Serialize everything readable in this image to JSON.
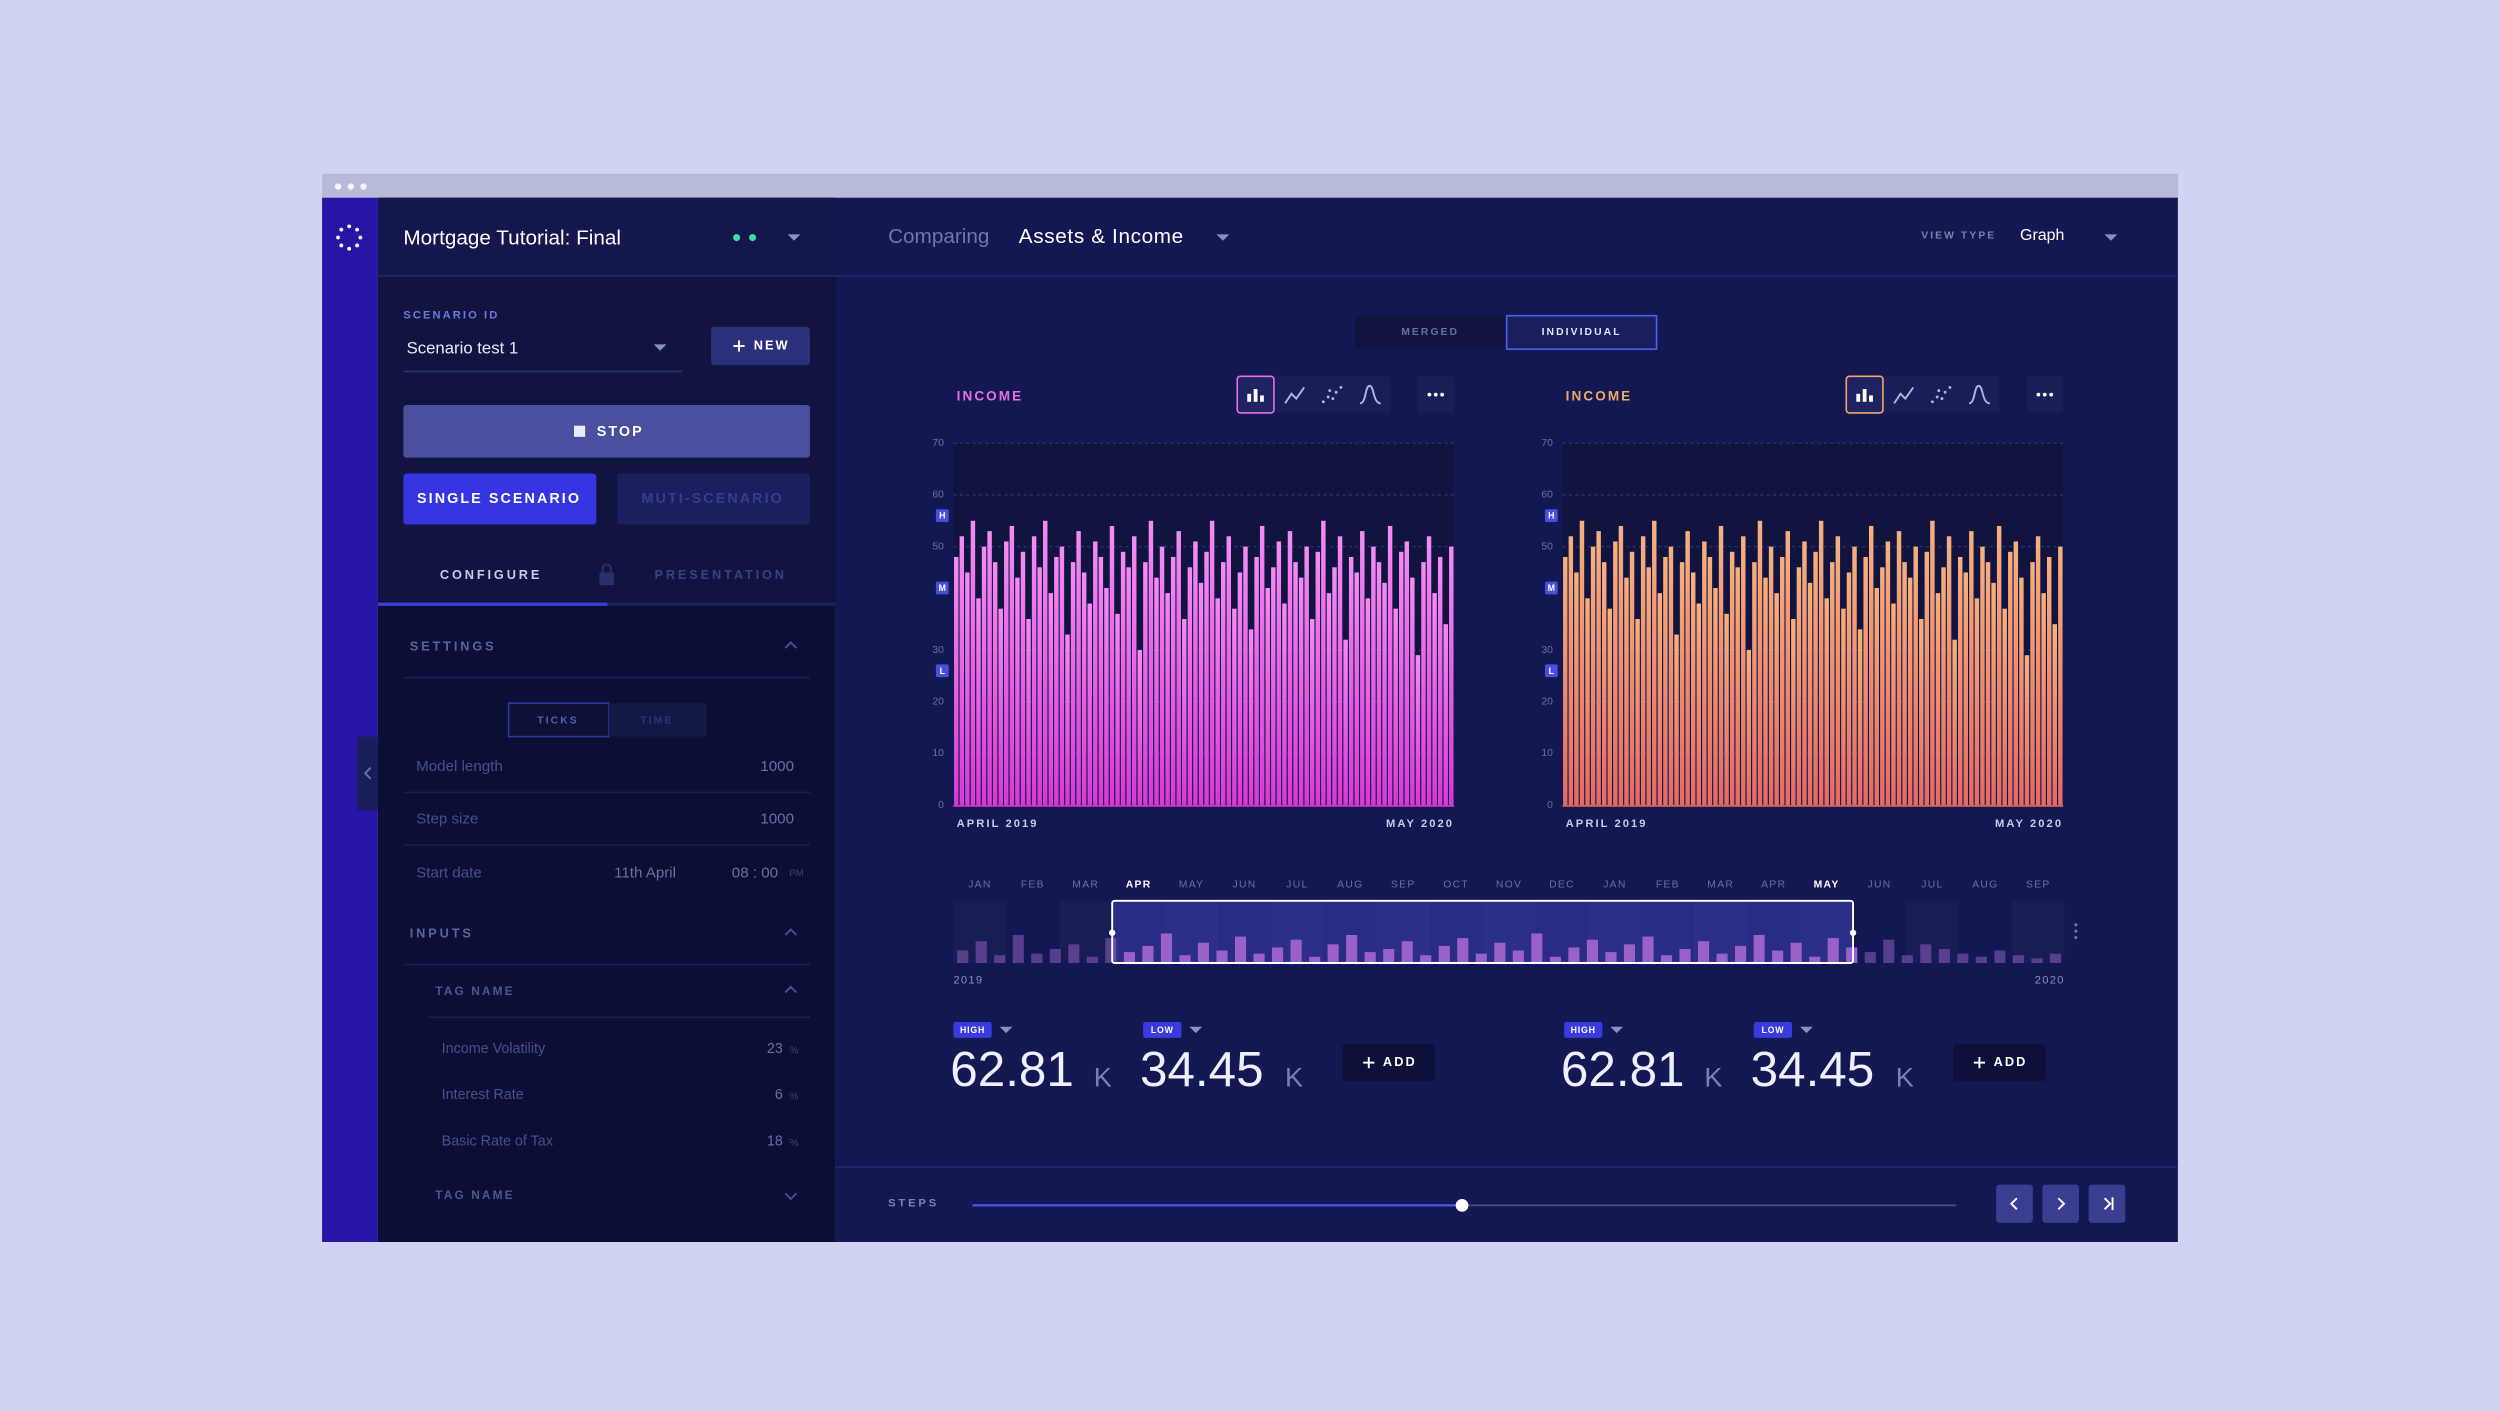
{
  "sidebar": {
    "title": "Mortgage Tutorial: Final",
    "scenario_label": "SCENARIO ID",
    "scenario": "Scenario test 1",
    "new_button": "NEW",
    "stop_button": "STOP",
    "mode_buttons": [
      "SINGLE SCENARIO",
      "MUTI-SCENARIO"
    ],
    "tabs": [
      "CONFIGURE",
      "PRESENTATION"
    ],
    "settings": {
      "title": "SETTINGS",
      "toggle": [
        "TICKS",
        "TIME"
      ],
      "rows": [
        {
          "label": "Model length",
          "value": 1000
        },
        {
          "label": "Step size",
          "value": 1000
        }
      ],
      "start_date": {
        "label": "Start date",
        "date": "11th April",
        "time": "08 : 00",
        "period": "PM"
      }
    },
    "inputs": {
      "title": "INPUTS",
      "tag_names": [
        "TAG NAME",
        "TAG NAME"
      ],
      "rows": [
        {
          "label": "Income Volatility",
          "value": 23,
          "unit": "%"
        },
        {
          "label": "Interest Rate",
          "value": 6,
          "unit": "%"
        },
        {
          "label": "Basic Rate of Tax",
          "value": 18,
          "unit": "%"
        }
      ]
    }
  },
  "topbar": {
    "comparing": "Comparing",
    "subject": "Assets & Income",
    "view_type_label": "VIEW TYPE",
    "view_type": "Graph"
  },
  "view_toggle": {
    "options": [
      "MERGED",
      "INDIVIDUAL"
    ],
    "selected": 1
  },
  "chart_data": [
    {
      "type": "bar",
      "title": "INCOME",
      "title_color": "#e86fe0",
      "color": "#d838d8",
      "color_light": "#f38cf3",
      "ylim": [
        0,
        70
      ],
      "yticks": [
        0,
        10,
        20,
        30,
        50,
        60,
        70
      ],
      "grid": true,
      "markers": [
        {
          "label": "H",
          "value": 56
        },
        {
          "label": "M",
          "value": 42
        },
        {
          "label": "L",
          "value": 26
        }
      ],
      "x_start": "APRIL 2019",
      "x_end": "MAY 2020",
      "values": [
        48,
        52,
        45,
        55,
        40,
        50,
        53,
        47,
        38,
        51,
        54,
        44,
        49,
        36,
        52,
        46,
        55,
        41,
        48,
        50,
        33,
        47,
        53,
        45,
        39,
        51,
        48,
        42,
        54,
        37,
        49,
        46,
        52,
        30,
        47,
        55,
        44,
        50,
        41,
        48,
        53,
        36,
        46,
        51,
        43,
        49,
        55,
        40,
        47,
        52,
        38,
        45,
        50,
        34,
        48,
        54,
        42,
        46,
        51,
        39,
        53,
        47,
        44,
        50,
        36,
        49,
        55,
        41,
        46,
        52,
        32,
        48,
        45,
        53,
        40,
        50,
        47,
        43,
        54,
        38,
        49,
        51,
        44,
        29,
        47,
        52,
        41,
        48,
        35,
        50
      ]
    },
    {
      "type": "bar",
      "title": "INCOME",
      "title_color": "#f0a868",
      "color": "#e46a66",
      "color_light": "#f6b07e",
      "ylim": [
        0,
        70
      ],
      "yticks": [
        0,
        10,
        20,
        30,
        50,
        60,
        70
      ],
      "grid": true,
      "markers": [
        {
          "label": "H",
          "value": 56
        },
        {
          "label": "M",
          "value": 42
        },
        {
          "label": "L",
          "value": 26
        }
      ],
      "x_start": "APRIL 2019",
      "x_end": "MAY 2020",
      "values": [
        48,
        52,
        45,
        55,
        40,
        50,
        53,
        47,
        38,
        51,
        54,
        44,
        49,
        36,
        52,
        46,
        55,
        41,
        48,
        50,
        33,
        47,
        53,
        45,
        39,
        51,
        48,
        42,
        54,
        37,
        49,
        46,
        52,
        30,
        47,
        55,
        44,
        50,
        41,
        48,
        53,
        36,
        46,
        51,
        43,
        49,
        55,
        40,
        47,
        52,
        38,
        45,
        50,
        34,
        48,
        54,
        42,
        46,
        51,
        39,
        53,
        47,
        44,
        50,
        36,
        49,
        55,
        41,
        46,
        52,
        32,
        48,
        45,
        53,
        40,
        50,
        47,
        43,
        54,
        38,
        49,
        51,
        44,
        29,
        47,
        52,
        41,
        48,
        35,
        50
      ]
    }
  ],
  "timeline": {
    "months": [
      "JAN",
      "FEB",
      "MAR",
      "APR",
      "MAY",
      "JUN",
      "JUL",
      "AUG",
      "SEP",
      "OCT",
      "NOV",
      "DEC",
      "JAN",
      "FEB",
      "MAR",
      "APR",
      "MAY",
      "JUN",
      "JUL",
      "AUG",
      "SEP"
    ],
    "selection": [
      3,
      16
    ],
    "start_label": "2019",
    "end_label": "2020",
    "ylim": [
      0,
      40
    ],
    "color": "#9a62c8",
    "values": [
      8,
      14,
      5,
      18,
      6,
      9,
      12,
      4,
      16,
      7,
      11,
      19,
      5,
      13,
      8,
      17,
      6,
      10,
      15,
      4,
      12,
      18,
      7,
      9,
      14,
      5,
      11,
      16,
      6,
      13,
      8,
      19,
      4,
      10,
      15,
      7,
      12,
      17,
      5,
      9,
      14,
      6,
      11,
      18,
      8,
      13,
      4,
      16,
      10,
      7,
      15,
      5,
      12,
      9,
      6,
      4,
      8,
      5,
      3,
      6
    ]
  },
  "stats": [
    {
      "high_label": "HIGH",
      "high": 62.81,
      "low_label": "LOW",
      "low": 34.45,
      "unit": "K",
      "add_button": "ADD"
    },
    {
      "high_label": "HIGH",
      "high": 62.81,
      "low_label": "LOW",
      "low": 34.45,
      "unit": "K",
      "add_button": "ADD"
    }
  ],
  "steps": {
    "label": "STEPS"
  }
}
